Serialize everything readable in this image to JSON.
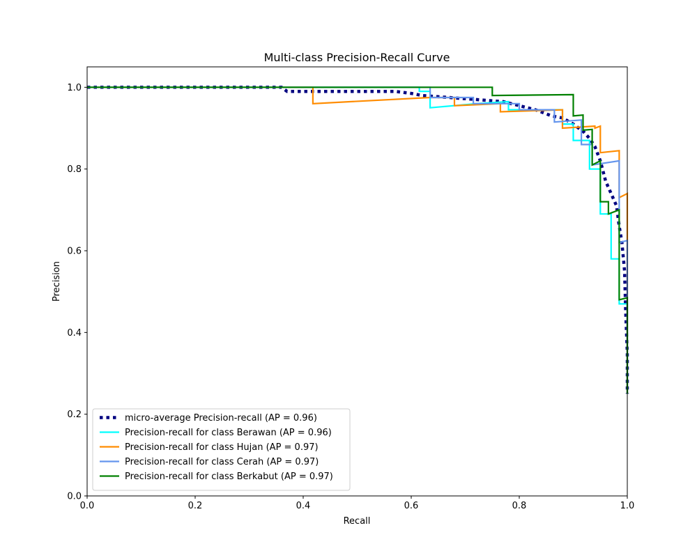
{
  "chart_data": {
    "type": "line",
    "title": "Multi-class Precision-Recall Curve",
    "xlabel": "Recall",
    "ylabel": "Precision",
    "xlim": [
      0.0,
      1.0
    ],
    "ylim": [
      0.0,
      1.05
    ],
    "xticks": [
      "0.0",
      "0.2",
      "0.4",
      "0.6",
      "0.8",
      "1.0"
    ],
    "yticks": [
      "0.0",
      "0.2",
      "0.4",
      "0.6",
      "0.8",
      "1.0"
    ],
    "grid": false,
    "legend_position": "lower-left",
    "series": [
      {
        "name": "micro-average Precision-recall (AP = 0.96)",
        "color": "#000080",
        "style": "dotted",
        "points": [
          [
            0,
            1
          ],
          [
            0.36,
            1
          ],
          [
            0.37,
            0.99
          ],
          [
            0.42,
            0.99
          ],
          [
            0.5,
            0.99
          ],
          [
            0.57,
            0.99
          ],
          [
            0.6,
            0.985
          ],
          [
            0.62,
            0.98
          ],
          [
            0.67,
            0.975
          ],
          [
            0.72,
            0.97
          ],
          [
            0.77,
            0.965
          ],
          [
            0.8,
            0.955
          ],
          [
            0.83,
            0.945
          ],
          [
            0.86,
            0.93
          ],
          [
            0.88,
            0.925
          ],
          [
            0.9,
            0.91
          ],
          [
            0.92,
            0.89
          ],
          [
            0.93,
            0.875
          ],
          [
            0.94,
            0.855
          ],
          [
            0.95,
            0.82
          ],
          [
            0.96,
            0.77
          ],
          [
            0.97,
            0.74
          ],
          [
            0.98,
            0.71
          ],
          [
            0.985,
            0.66
          ],
          [
            0.99,
            0.62
          ],
          [
            0.995,
            0.55
          ],
          [
            0.997,
            0.45
          ],
          [
            1.0,
            0.35
          ],
          [
            1.0,
            0.25
          ]
        ]
      },
      {
        "name": "Precision-recall for class Berawan (AP = 0.96)",
        "color": "#00ffff",
        "style": "solid",
        "points": [
          [
            0,
            1
          ],
          [
            0.615,
            1
          ],
          [
            0.615,
            0.99
          ],
          [
            0.635,
            0.99
          ],
          [
            0.635,
            0.95
          ],
          [
            0.68,
            0.955
          ],
          [
            0.72,
            0.96
          ],
          [
            0.78,
            0.965
          ],
          [
            0.78,
            0.945
          ],
          [
            0.88,
            0.945
          ],
          [
            0.88,
            0.91
          ],
          [
            0.9,
            0.91
          ],
          [
            0.9,
            0.87
          ],
          [
            0.93,
            0.87
          ],
          [
            0.93,
            0.8
          ],
          [
            0.95,
            0.8
          ],
          [
            0.95,
            0.69
          ],
          [
            0.97,
            0.69
          ],
          [
            0.97,
            0.58
          ],
          [
            0.985,
            0.58
          ],
          [
            0.985,
            0.47
          ],
          [
            1.0,
            0.47
          ],
          [
            1.0,
            0.25
          ]
        ]
      },
      {
        "name": "Precision-recall for class Hujan (AP = 0.97)",
        "color": "#ff8c00",
        "style": "solid",
        "points": [
          [
            0,
            1
          ],
          [
            0.418,
            1
          ],
          [
            0.418,
            0.96
          ],
          [
            0.635,
            0.975
          ],
          [
            0.68,
            0.975
          ],
          [
            0.68,
            0.955
          ],
          [
            0.765,
            0.96
          ],
          [
            0.765,
            0.94
          ],
          [
            0.88,
            0.945
          ],
          [
            0.88,
            0.9
          ],
          [
            0.94,
            0.905
          ],
          [
            0.94,
            0.9
          ],
          [
            0.95,
            0.905
          ],
          [
            0.95,
            0.84
          ],
          [
            0.985,
            0.845
          ],
          [
            0.985,
            0.73
          ],
          [
            1.0,
            0.74
          ],
          [
            1.0,
            0.62
          ],
          [
            1.0,
            0.25
          ]
        ]
      },
      {
        "name": "Precision-recall for class Cerah (AP = 0.97)",
        "color": "#6495ed",
        "style": "solid",
        "points": [
          [
            0,
            1
          ],
          [
            0.635,
            1
          ],
          [
            0.635,
            0.975
          ],
          [
            0.715,
            0.975
          ],
          [
            0.715,
            0.96
          ],
          [
            0.8,
            0.96
          ],
          [
            0.8,
            0.945
          ],
          [
            0.865,
            0.945
          ],
          [
            0.865,
            0.915
          ],
          [
            0.915,
            0.92
          ],
          [
            0.915,
            0.86
          ],
          [
            0.935,
            0.86
          ],
          [
            0.935,
            0.81
          ],
          [
            0.985,
            0.82
          ],
          [
            0.985,
            0.62
          ],
          [
            1.0,
            0.625
          ],
          [
            1.0,
            0.25
          ]
        ]
      },
      {
        "name": "Precision-recall for class Berkabut (AP = 0.97)",
        "color": "#008000",
        "style": "solid",
        "points": [
          [
            0,
            1
          ],
          [
            0.75,
            1
          ],
          [
            0.75,
            0.98
          ],
          [
            0.9,
            0.982
          ],
          [
            0.9,
            0.93
          ],
          [
            0.918,
            0.932
          ],
          [
            0.918,
            0.895
          ],
          [
            0.935,
            0.897
          ],
          [
            0.935,
            0.81
          ],
          [
            0.95,
            0.82
          ],
          [
            0.95,
            0.72
          ],
          [
            0.965,
            0.72
          ],
          [
            0.965,
            0.69
          ],
          [
            0.985,
            0.7
          ],
          [
            0.985,
            0.48
          ],
          [
            1.0,
            0.485
          ],
          [
            1.0,
            0.25
          ]
        ]
      }
    ]
  }
}
